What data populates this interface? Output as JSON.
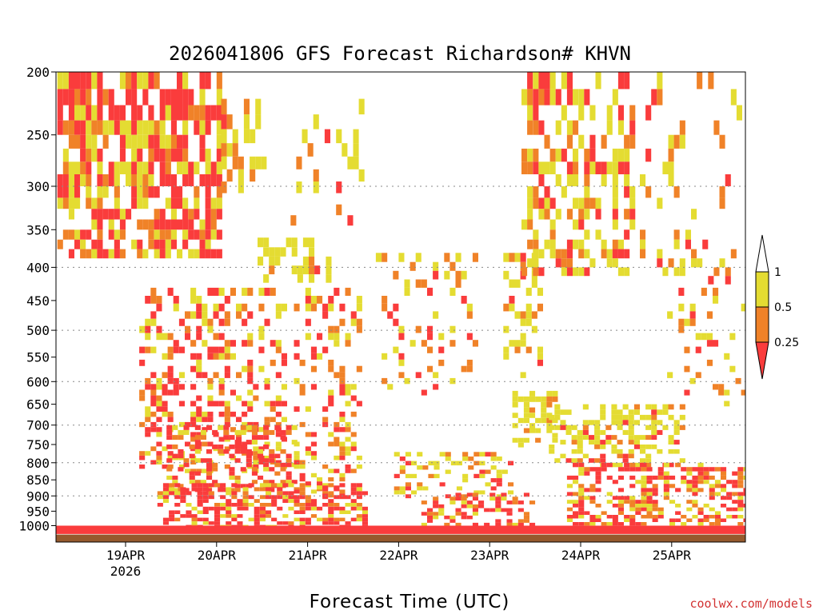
{
  "chart_data": {
    "type": "heatmap",
    "title": "2026041806 GFS Forecast Richardson# KHVN",
    "xlabel": "Forecast Time (UTC)",
    "ylabel": "",
    "credit": "coolwx.com/models",
    "y_axis": {
      "scale": "log",
      "ylim": [
        200,
        1060
      ],
      "inverted": true,
      "ticks": [
        "200",
        "250",
        "300",
        "350",
        "400",
        "450",
        "500",
        "550",
        "600",
        "650",
        "700",
        "750",
        "800",
        "850",
        "900",
        "950",
        "1000"
      ],
      "gridlines": [
        300,
        400,
        500,
        600,
        700,
        800,
        900
      ]
    },
    "x_axis": {
      "ticks": [
        "19APR",
        "20APR",
        "21APR",
        "22APR",
        "23APR",
        "24APR",
        "25APR"
      ],
      "first_tick_sublabel": "2026"
    },
    "legend": {
      "placement": "right",
      "bins": [
        {
          "label": "1",
          "range": "> 1",
          "color": "#ffffff"
        },
        {
          "label": "0.5",
          "range": "0.5 - 1",
          "color": "#e4dc32"
        },
        {
          "label": "0.25",
          "range": "0.25 - 0.5",
          "color": "#f08228"
        },
        {
          "label": "",
          "range": "< 0.25",
          "color": "#fa3c3c"
        }
      ]
    },
    "surface_color": "#965a2d",
    "regions": [
      {
        "t0": 0.0,
        "t1": 1.8,
        "p0": 200,
        "p1": 380,
        "mix": [
          0.35,
          0.2,
          0.4
        ],
        "density": 0.7
      },
      {
        "t0": 1.8,
        "t1": 2.3,
        "p0": 220,
        "p1": 300,
        "mix": [
          0.5,
          0.4,
          0.1
        ],
        "density": 0.35
      },
      {
        "t0": 2.2,
        "t1": 3.0,
        "p0": 360,
        "p1": 410,
        "mix": [
          0.85,
          0.1,
          0.05
        ],
        "density": 0.35
      },
      {
        "t0": 2.5,
        "t1": 3.4,
        "p0": 220,
        "p1": 340,
        "mix": [
          0.6,
          0.3,
          0.1
        ],
        "density": 0.12
      },
      {
        "t0": 0.9,
        "t1": 2.5,
        "p0": 430,
        "p1": 820,
        "mix": [
          0.3,
          0.25,
          0.45
        ],
        "density": 0.35
      },
      {
        "t0": 1.2,
        "t1": 2.6,
        "p0": 700,
        "p1": 880,
        "mix": [
          0.25,
          0.25,
          0.5
        ],
        "density": 0.45
      },
      {
        "t0": 1.1,
        "t1": 3.4,
        "p0": 860,
        "p1": 1000,
        "mix": [
          0.2,
          0.2,
          0.6
        ],
        "density": 0.55
      },
      {
        "t0": 2.6,
        "t1": 3.3,
        "p0": 430,
        "p1": 900,
        "mix": [
          0.35,
          0.3,
          0.35
        ],
        "density": 0.25
      },
      {
        "t0": 3.5,
        "t1": 4.6,
        "p0": 380,
        "p1": 620,
        "mix": [
          0.45,
          0.35,
          0.2
        ],
        "density": 0.15
      },
      {
        "t0": 3.7,
        "t1": 5.0,
        "p0": 770,
        "p1": 900,
        "mix": [
          0.55,
          0.25,
          0.2
        ],
        "density": 0.35
      },
      {
        "t0": 4.0,
        "t1": 5.2,
        "p0": 890,
        "p1": 1000,
        "mix": [
          0.2,
          0.2,
          0.6
        ],
        "density": 0.45
      },
      {
        "t0": 4.9,
        "t1": 5.3,
        "p0": 380,
        "p1": 580,
        "mix": [
          0.65,
          0.25,
          0.1
        ],
        "density": 0.3
      },
      {
        "t0": 5.0,
        "t1": 5.5,
        "p0": 620,
        "p1": 750,
        "mix": [
          0.85,
          0.1,
          0.05
        ],
        "density": 0.55
      },
      {
        "t0": 5.1,
        "t1": 6.3,
        "p0": 200,
        "p1": 400,
        "mix": [
          0.5,
          0.25,
          0.25
        ],
        "density": 0.45
      },
      {
        "t0": 5.4,
        "t1": 6.9,
        "p0": 650,
        "p1": 800,
        "mix": [
          0.8,
          0.1,
          0.1
        ],
        "density": 0.45
      },
      {
        "t0": 5.6,
        "t1": 7.6,
        "p0": 800,
        "p1": 1000,
        "mix": [
          0.25,
          0.2,
          0.55
        ],
        "density": 0.45
      },
      {
        "t0": 6.4,
        "t1": 7.5,
        "p0": 200,
        "p1": 420,
        "mix": [
          0.5,
          0.35,
          0.15
        ],
        "density": 0.18
      },
      {
        "t0": 6.7,
        "t1": 7.6,
        "p0": 430,
        "p1": 650,
        "mix": [
          0.55,
          0.3,
          0.15
        ],
        "density": 0.2
      }
    ]
  }
}
